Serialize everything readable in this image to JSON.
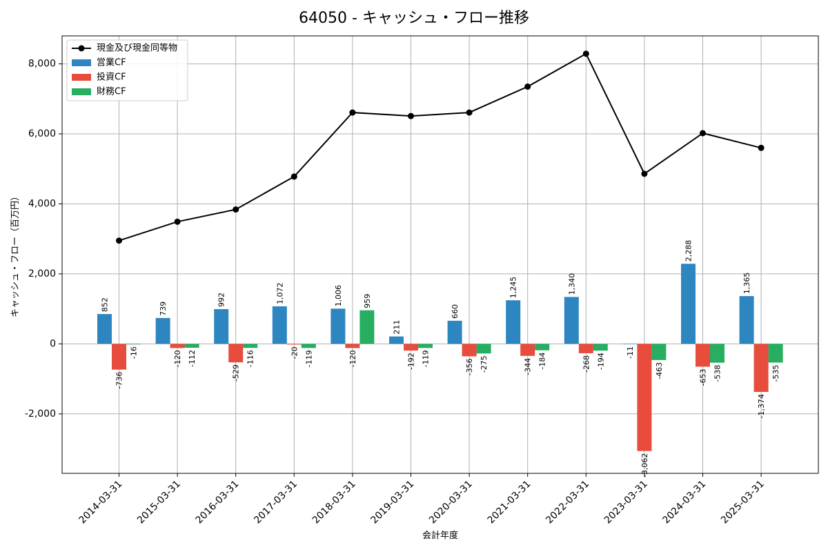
{
  "chart_data": {
    "type": "bar",
    "title": "64050 - キャッシュ・フロー推移",
    "xlabel": "会計年度",
    "ylabel": "キャッシュ・フロー（百万円）",
    "categories": [
      "2014-03-31",
      "2015-03-31",
      "2016-03-31",
      "2017-03-31",
      "2018-03-31",
      "2019-03-31",
      "2020-03-31",
      "2021-03-31",
      "2022-03-31",
      "2023-03-31",
      "2024-03-31",
      "2025-03-31"
    ],
    "ylim": [
      -3700,
      8800
    ],
    "yticks": [
      -2000,
      0,
      2000,
      4000,
      6000,
      8000
    ],
    "ytick_labels": [
      "-2,000",
      "0",
      "2,000",
      "4,000",
      "6,000",
      "8,000"
    ],
    "grid": true,
    "legend_position": "top-left",
    "series": [
      {
        "name": "営業CF",
        "kind": "bar",
        "color": "#2e86c1",
        "values": [
          852,
          739,
          992,
          1072,
          1006,
          211,
          660,
          1245,
          1340,
          -11,
          2288,
          1365
        ],
        "labels": [
          "852",
          "739",
          "992",
          "1,072",
          "1,006",
          "211",
          "660",
          "1,245",
          "1,340",
          "-11",
          "2,288",
          "1,365"
        ]
      },
      {
        "name": "投資CF",
        "kind": "bar",
        "color": "#e74c3c",
        "values": [
          -736,
          -120,
          -529,
          -20,
          -120,
          -192,
          -356,
          -344,
          -268,
          -3062,
          -653,
          -1374
        ],
        "labels": [
          "-736",
          "-120",
          "-529",
          "-20",
          "-120",
          "-192",
          "-356",
          "-344",
          "-268",
          "-3,062",
          "-653",
          "-1,374"
        ]
      },
      {
        "name": "財務CF",
        "kind": "bar",
        "color": "#27ae60",
        "values": [
          -16,
          -112,
          -116,
          -119,
          959,
          -119,
          -275,
          -184,
          -194,
          -463,
          -538,
          -535
        ],
        "labels": [
          "-16",
          "-112",
          "-116",
          "-119",
          "959",
          "-119",
          "-275",
          "-184",
          "-194",
          "-463",
          "-538",
          "-535"
        ]
      },
      {
        "name": "現金及び現金同等物",
        "kind": "line",
        "color": "#000000",
        "values": [
          2950,
          3490,
          3840,
          4780,
          6610,
          6510,
          6610,
          7350,
          8290,
          4860,
          6020,
          5600
        ]
      }
    ]
  }
}
